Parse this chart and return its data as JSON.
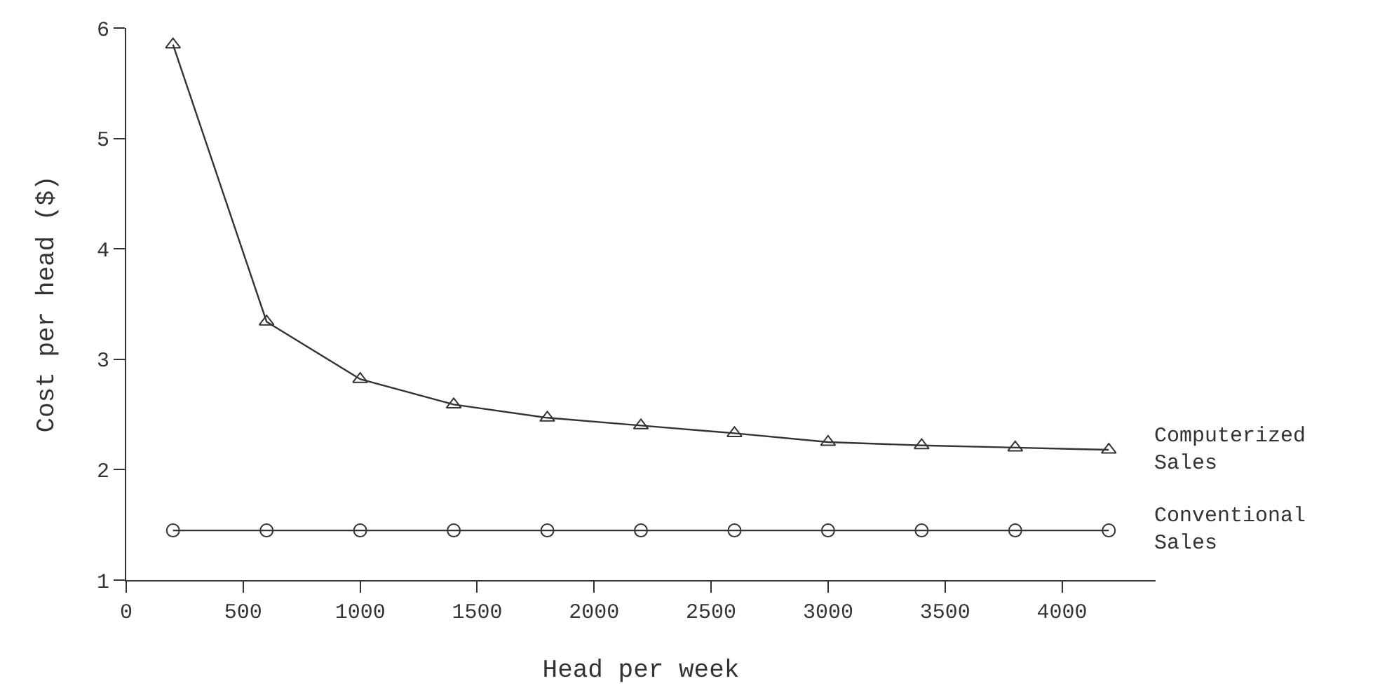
{
  "chart_data": {
    "type": "line",
    "xlabel": "Head per week",
    "ylabel": "Cost per head ($)",
    "x": [
      200,
      600,
      1000,
      1400,
      1800,
      2200,
      2600,
      3000,
      3400,
      3800,
      4200
    ],
    "series": [
      {
        "name": "Computerized\nSales",
        "color": "#333333",
        "marker": "triangle",
        "values": [
          5.85,
          3.34,
          2.82,
          2.59,
          2.47,
          2.4,
          2.33,
          2.25,
          2.22,
          2.2,
          2.18
        ]
      },
      {
        "name": "Conventional\nSales",
        "color": "#333333",
        "marker": "circle",
        "values": [
          1.45,
          1.45,
          1.45,
          1.45,
          1.45,
          1.45,
          1.45,
          1.45,
          1.45,
          1.45,
          1.45
        ]
      }
    ],
    "xlim": [
      0,
      4400
    ],
    "xticks": [
      0,
      500,
      1000,
      1500,
      2000,
      2500,
      3000,
      3500,
      4000
    ],
    "ylim": [
      1,
      6
    ],
    "yticks": [
      1,
      2,
      3,
      4,
      5,
      6
    ],
    "legend": false
  }
}
